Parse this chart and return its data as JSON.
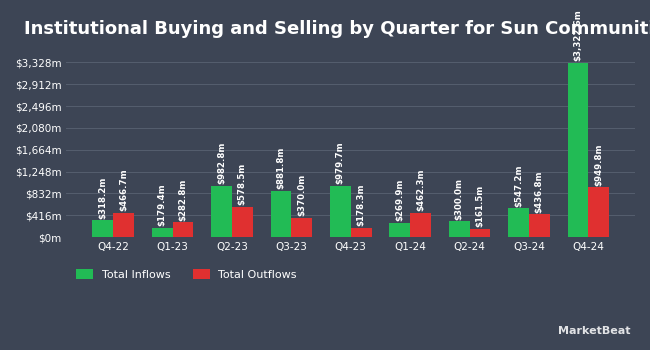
{
  "title": "Institutional Buying and Selling by Quarter for Sun Communities",
  "quarters": [
    "Q4-22",
    "Q1-23",
    "Q2-23",
    "Q3-23",
    "Q4-23",
    "Q1-24",
    "Q2-24",
    "Q3-24",
    "Q4-24"
  ],
  "inflows": [
    318.2,
    179.4,
    982.8,
    881.8,
    979.7,
    269.9,
    300.0,
    547.2,
    3322.6
  ],
  "outflows": [
    466.7,
    282.8,
    578.5,
    370.0,
    178.3,
    462.3,
    161.5,
    436.8,
    949.8
  ],
  "inflow_labels": [
    "$318.2m",
    "$179.4m",
    "$982.8m",
    "$881.8m",
    "$979.7m",
    "$269.9m",
    "$300.0m",
    "$547.2m",
    "$3,322.6m"
  ],
  "outflow_labels": [
    "$466.7m",
    "$282.8m",
    "$578.5m",
    "$370.0m",
    "$178.3m",
    "$462.3m",
    "$161.5m",
    "$436.8m",
    "$949.8m"
  ],
  "inflow_color": "#22bb55",
  "outflow_color": "#e03030",
  "bg_color": "#3d4555",
  "grid_color": "#555e6e",
  "text_color": "#ffffff",
  "title_fontsize": 13,
  "tick_fontsize": 7.5,
  "label_fontsize": 6.2,
  "legend_fontsize": 8,
  "ytick_labels": [
    "$0m",
    "$416m",
    "$832m",
    "$1,248m",
    "$1,664m",
    "$2,080m",
    "$2,496m",
    "$2,912m",
    "$3,328m"
  ],
  "ytick_values": [
    0,
    416,
    832,
    1248,
    1664,
    2080,
    2496,
    2912,
    3328
  ],
  "ylim": [
    0,
    3600
  ]
}
